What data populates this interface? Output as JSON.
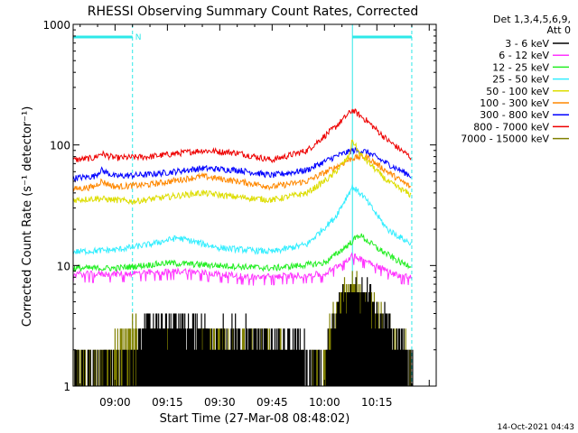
{
  "chart_data": {
    "type": "line",
    "title": "RHESSI Observing Summary Count Rates, Corrected",
    "xlabel": "Start Time (27-Mar-08 08:48:02)",
    "ylabel": "Corrected Count Rate (s⁻¹ detector⁻¹)",
    "yscale": "log",
    "ylim": [
      1,
      1000
    ],
    "xlim": [
      "08:48",
      "10:32"
    ],
    "x_ticks": [
      "09:00",
      "09:15",
      "09:30",
      "09:45",
      "10:00",
      "10:15"
    ],
    "y_ticks": [
      "1",
      "10",
      "100",
      "1000"
    ],
    "legend_header": [
      "Det 1,3,4,5,6,9,",
      "Att 0"
    ],
    "legend_position": "right",
    "timestamp": "14-Oct-2021 04:43",
    "flag_label": "N",
    "flag_bars": [
      {
        "start": "08:48",
        "end": "09:05"
      },
      {
        "start": "10:08",
        "end": "10:25"
      }
    ],
    "markers": [
      "08:48",
      "09:05",
      "10:08",
      "10:25"
    ],
    "colors": {
      "marker": "#2ee8e8"
    },
    "series": [
      {
        "name": "3 - 6 keV",
        "color": "#000000",
        "shape": "quantized",
        "points": [
          [
            "08:48",
            1.4
          ],
          [
            "09:06",
            1.6
          ],
          [
            "09:08",
            3.5
          ],
          [
            "09:20",
            3.2
          ],
          [
            "09:35",
            2.8
          ],
          [
            "09:50",
            2.4
          ],
          [
            "10:00",
            1.6
          ],
          [
            "10:02",
            3
          ],
          [
            "10:06",
            6
          ],
          [
            "10:12",
            6
          ],
          [
            "10:16",
            4
          ],
          [
            "10:21",
            2.5
          ],
          [
            "10:25",
            1.6
          ],
          [
            "10:26",
            1
          ]
        ]
      },
      {
        "name": "6 - 12 keV",
        "color": "#ff33ff",
        "shape": "noisy",
        "points": [
          [
            "08:48",
            8.5
          ],
          [
            "09:00",
            8.5
          ],
          [
            "09:20",
            9
          ],
          [
            "09:40",
            8
          ],
          [
            "10:00",
            8.5
          ],
          [
            "10:08",
            12
          ],
          [
            "10:12",
            11
          ],
          [
            "10:20",
            8.5
          ],
          [
            "10:25",
            8
          ]
        ]
      },
      {
        "name": "12 - 25 keV",
        "color": "#22ee22",
        "shape": "noisy",
        "points": [
          [
            "08:48",
            9.5
          ],
          [
            "09:00",
            9.5
          ],
          [
            "09:15",
            10.5
          ],
          [
            "09:30",
            10
          ],
          [
            "09:45",
            9.5
          ],
          [
            "10:00",
            10.5
          ],
          [
            "10:07",
            15
          ],
          [
            "10:10",
            18
          ],
          [
            "10:15",
            14
          ],
          [
            "10:22",
            10.5
          ],
          [
            "10:25",
            10
          ]
        ]
      },
      {
        "name": "25 - 50 keV",
        "color": "#33eeff",
        "shape": "noisy",
        "points": [
          [
            "08:48",
            13
          ],
          [
            "09:00",
            13.5
          ],
          [
            "09:10",
            15
          ],
          [
            "09:18",
            17
          ],
          [
            "09:30",
            14
          ],
          [
            "09:45",
            13
          ],
          [
            "09:55",
            15
          ],
          [
            "10:03",
            25
          ],
          [
            "10:08",
            45
          ],
          [
            "10:11",
            38
          ],
          [
            "10:18",
            20
          ],
          [
            "10:25",
            15
          ]
        ]
      },
      {
        "name": "50 - 100 keV",
        "color": "#dddd00",
        "shape": "noisy",
        "points": [
          [
            "08:48",
            35
          ],
          [
            "08:55",
            36
          ],
          [
            "09:05",
            34
          ],
          [
            "09:18",
            38
          ],
          [
            "09:25",
            40
          ],
          [
            "09:35",
            37
          ],
          [
            "09:45",
            35
          ],
          [
            "09:55",
            40
          ],
          [
            "10:02",
            55
          ],
          [
            "10:07",
            80
          ],
          [
            "10:08",
            110
          ],
          [
            "10:10",
            85
          ],
          [
            "10:18",
            50
          ],
          [
            "10:25",
            38
          ]
        ]
      },
      {
        "name": "100 - 300 keV",
        "color": "#ff8800",
        "shape": "noisy",
        "points": [
          [
            "08:48",
            43
          ],
          [
            "08:54",
            45
          ],
          [
            "08:56",
            50
          ],
          [
            "09:00",
            45
          ],
          [
            "09:10",
            47
          ],
          [
            "09:25",
            55
          ],
          [
            "09:35",
            50
          ],
          [
            "09:45",
            45
          ],
          [
            "09:55",
            50
          ],
          [
            "10:03",
            65
          ],
          [
            "10:08",
            78
          ],
          [
            "10:12",
            80
          ],
          [
            "10:18",
            60
          ],
          [
            "10:25",
            44
          ]
        ]
      },
      {
        "name": "300 - 800 keV",
        "color": "#0000ff",
        "shape": "noisy",
        "points": [
          [
            "08:48",
            53
          ],
          [
            "08:54",
            55
          ],
          [
            "08:56",
            62
          ],
          [
            "09:00",
            55
          ],
          [
            "09:10",
            57
          ],
          [
            "09:25",
            64
          ],
          [
            "09:35",
            62
          ],
          [
            "09:45",
            56
          ],
          [
            "09:55",
            62
          ],
          [
            "10:03",
            80
          ],
          [
            "10:08",
            90
          ],
          [
            "10:12",
            88
          ],
          [
            "10:18",
            70
          ],
          [
            "10:25",
            55
          ]
        ]
      },
      {
        "name": "800 - 7000 keV",
        "color": "#ee0000",
        "shape": "noisy",
        "points": [
          [
            "08:48",
            75
          ],
          [
            "08:54",
            78
          ],
          [
            "08:56",
            85
          ],
          [
            "09:00",
            78
          ],
          [
            "09:10",
            80
          ],
          [
            "09:25",
            90
          ],
          [
            "09:35",
            86
          ],
          [
            "09:45",
            75
          ],
          [
            "09:55",
            90
          ],
          [
            "10:03",
            140
          ],
          [
            "10:08",
            195
          ],
          [
            "10:12",
            160
          ],
          [
            "10:18",
            110
          ],
          [
            "10:25",
            78
          ]
        ]
      },
      {
        "name": "7000 - 15000 keV",
        "color": "#808000",
        "shape": "quantized",
        "points": [
          [
            "08:48",
            1.3
          ],
          [
            "09:06",
            2.8
          ],
          [
            "09:20",
            2.4
          ],
          [
            "09:35",
            2.3
          ],
          [
            "09:50",
            2
          ],
          [
            "10:00",
            1.8
          ],
          [
            "10:02",
            3.5
          ],
          [
            "10:06",
            6.5
          ],
          [
            "10:12",
            6
          ],
          [
            "10:16",
            3.8
          ],
          [
            "10:21",
            2.5
          ],
          [
            "10:25",
            1.6
          ],
          [
            "10:26",
            1
          ]
        ]
      }
    ]
  }
}
